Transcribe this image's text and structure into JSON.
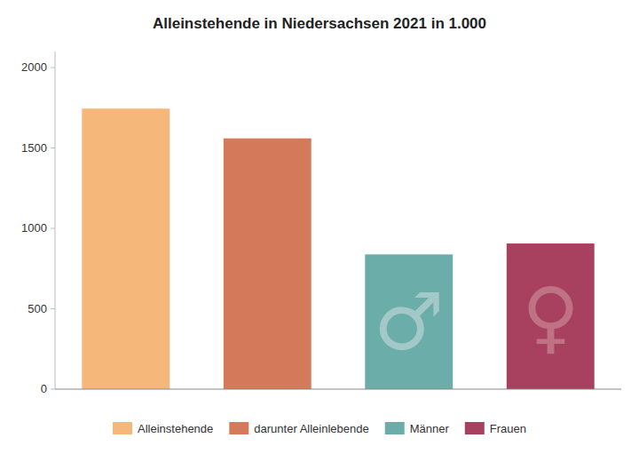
{
  "chart_data": {
    "type": "bar",
    "title": "Alleinstehende in Niedersachsen 2021 in 1.000",
    "categories": [
      "Alleinstehende",
      "darunter Alleinlebende",
      "Männer",
      "Frauen"
    ],
    "values": [
      1745,
      1560,
      838,
      906
    ],
    "colors": [
      "#F5B87A",
      "#D4795A",
      "#6BADA8",
      "#A84060"
    ],
    "ylim": [
      0,
      2100
    ],
    "yticks": [
      0,
      500,
      1000,
      1500,
      2000
    ],
    "grid": false,
    "legend": "bottom",
    "tick_labels": "y",
    "annotations": [
      {
        "text": "♂",
        "category": "Männer",
        "color": "#A8CCCA"
      },
      {
        "text": "♀",
        "category": "Frauen",
        "color": "#C07888"
      }
    ]
  }
}
